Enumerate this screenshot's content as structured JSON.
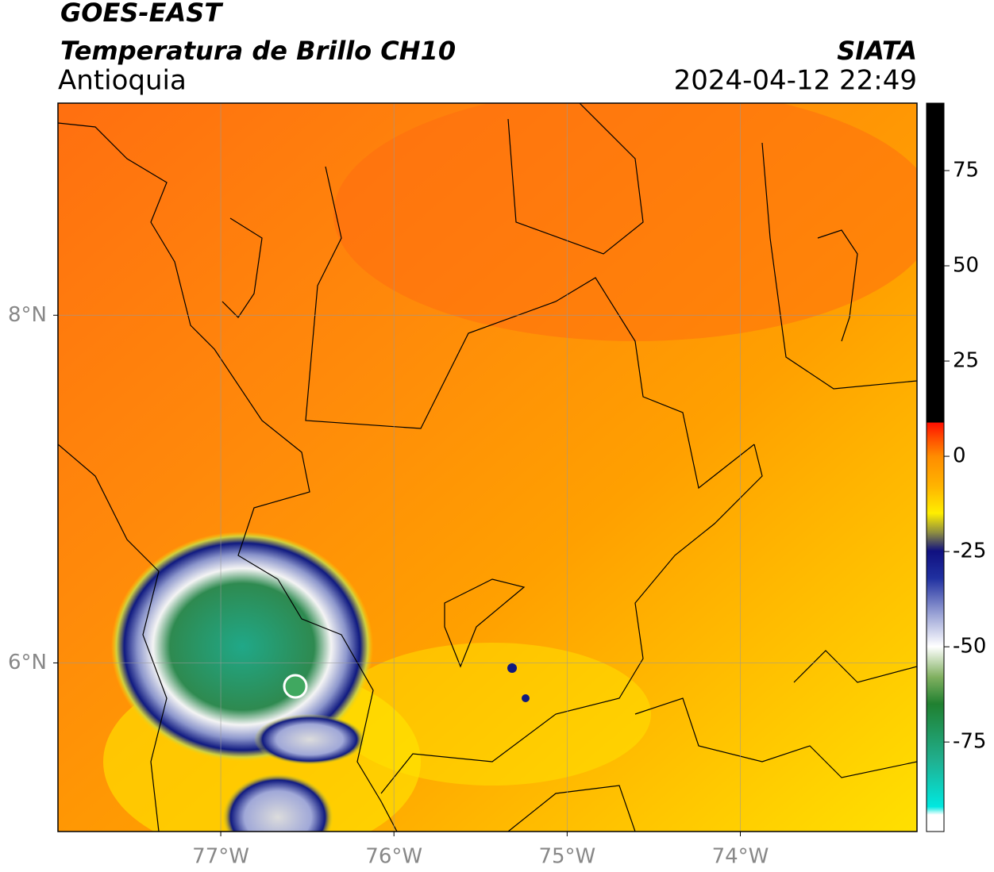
{
  "header": {
    "title": "GOES-EAST",
    "subtitle": "Temperatura de Brillo CH10",
    "region": "Antioquia",
    "source": "SIATA",
    "datetime": "2024-04-12 22:49"
  },
  "map": {
    "xlim": [
      -77.94,
      -72.98
    ],
    "ylim": [
      5.03,
      9.22
    ],
    "xticks": [
      {
        "value": -77,
        "label": "77°W"
      },
      {
        "value": -76,
        "label": "76°W"
      },
      {
        "value": -75,
        "label": "75°W"
      },
      {
        "value": -74,
        "label": "74°W"
      }
    ],
    "yticks": [
      {
        "value": 6,
        "label": "6°N"
      },
      {
        "value": 8,
        "label": "8°N"
      }
    ]
  },
  "colorbar": {
    "lim": [
      -98.5,
      92.7
    ],
    "ticks": [
      -75,
      -50,
      -25,
      0,
      25,
      50,
      75
    ]
  }
}
